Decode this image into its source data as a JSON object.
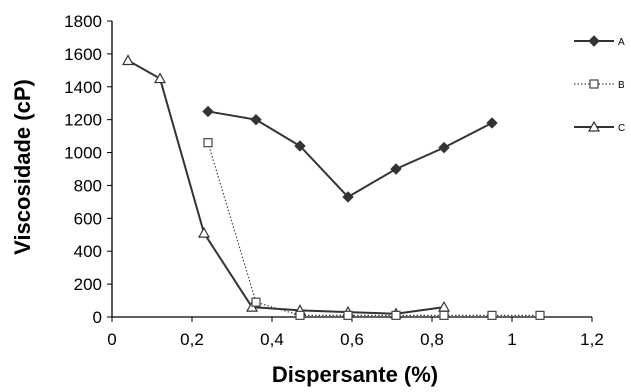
{
  "chart_data": {
    "type": "line",
    "title": "",
    "xlabel": "Dispersante (%)",
    "ylabel": "Viscosidade (cP)",
    "xlim": [
      0,
      1.2
    ],
    "ylim": [
      0,
      1800
    ],
    "xticks": [
      "0",
      "0,2",
      "0,4",
      "0,6",
      "0,8",
      "1",
      "1,2"
    ],
    "yticks": [
      "0",
      "200",
      "400",
      "600",
      "800",
      "1000",
      "1200",
      "1400",
      "1600",
      "1800"
    ],
    "grid": false,
    "legend_position": "right",
    "series": [
      {
        "name": "A",
        "marker": "filled-diamond",
        "line": "solid",
        "color": "#333333",
        "points": [
          [
            0.24,
            1250
          ],
          [
            0.36,
            1200
          ],
          [
            0.47,
            1040
          ],
          [
            0.59,
            730
          ],
          [
            0.71,
            900
          ],
          [
            0.83,
            1030
          ],
          [
            0.95,
            1180
          ]
        ]
      },
      {
        "name": "B",
        "marker": "open-square",
        "line": "dotted",
        "color": "#444444",
        "points": [
          [
            0.24,
            1060
          ],
          [
            0.36,
            90
          ],
          [
            0.47,
            10
          ],
          [
            0.59,
            10
          ],
          [
            0.71,
            10
          ],
          [
            0.83,
            10
          ],
          [
            0.95,
            10
          ],
          [
            1.07,
            10
          ]
        ]
      },
      {
        "name": "C",
        "marker": "open-triangle",
        "line": "solid",
        "color": "#333333",
        "points": [
          [
            0.04,
            1560
          ],
          [
            0.12,
            1450
          ],
          [
            0.23,
            510
          ],
          [
            0.35,
            60
          ],
          [
            0.47,
            40
          ],
          [
            0.59,
            30
          ],
          [
            0.71,
            20
          ],
          [
            0.83,
            60
          ]
        ]
      }
    ]
  }
}
